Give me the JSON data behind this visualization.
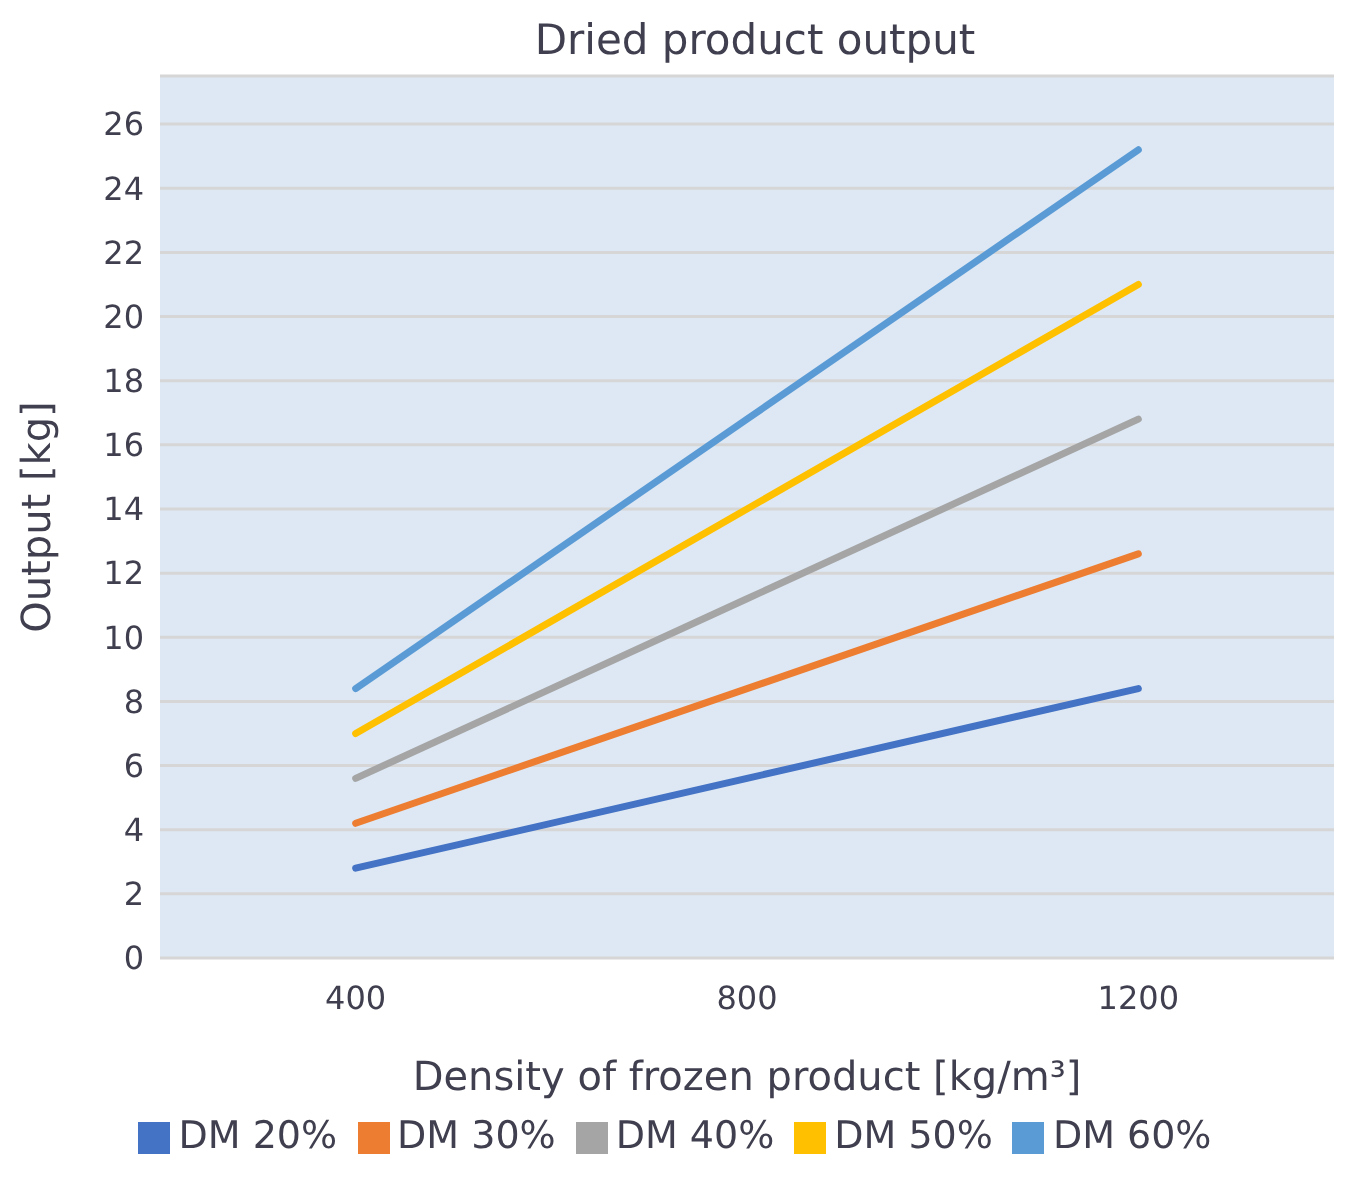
{
  "chart_data": {
    "type": "line",
    "title": "Dried product output",
    "xlabel": "Density of frozen product [kg/m³]",
    "ylabel": "Output [kg]",
    "x": [
      400,
      800,
      1200
    ],
    "series": [
      {
        "name": "DM 20%",
        "color": "#4472c4",
        "values": [
          2.8,
          5.6,
          8.4
        ]
      },
      {
        "name": "DM 30%",
        "color": "#ed7d31",
        "values": [
          4.2,
          8.4,
          12.6
        ]
      },
      {
        "name": "DM 40%",
        "color": "#a5a5a5",
        "values": [
          5.6,
          11.2,
          16.8
        ]
      },
      {
        "name": "DM 50%",
        "color": "#ffc000",
        "values": [
          7,
          14,
          21
        ]
      },
      {
        "name": "DM 60%",
        "color": "#5b9bd5",
        "values": [
          8.4,
          16.8,
          25.2
        ]
      }
    ],
    "xlim": [
      200,
      1400
    ],
    "xticks": [
      400,
      800,
      1200
    ],
    "ylim": [
      0,
      27.5
    ],
    "yticks": [
      0,
      2,
      4,
      6,
      8,
      10,
      12,
      14,
      16,
      18,
      20,
      22,
      24,
      26
    ],
    "grid": "y",
    "legend": "bottom",
    "marker": "none",
    "line_style": "solid"
  }
}
